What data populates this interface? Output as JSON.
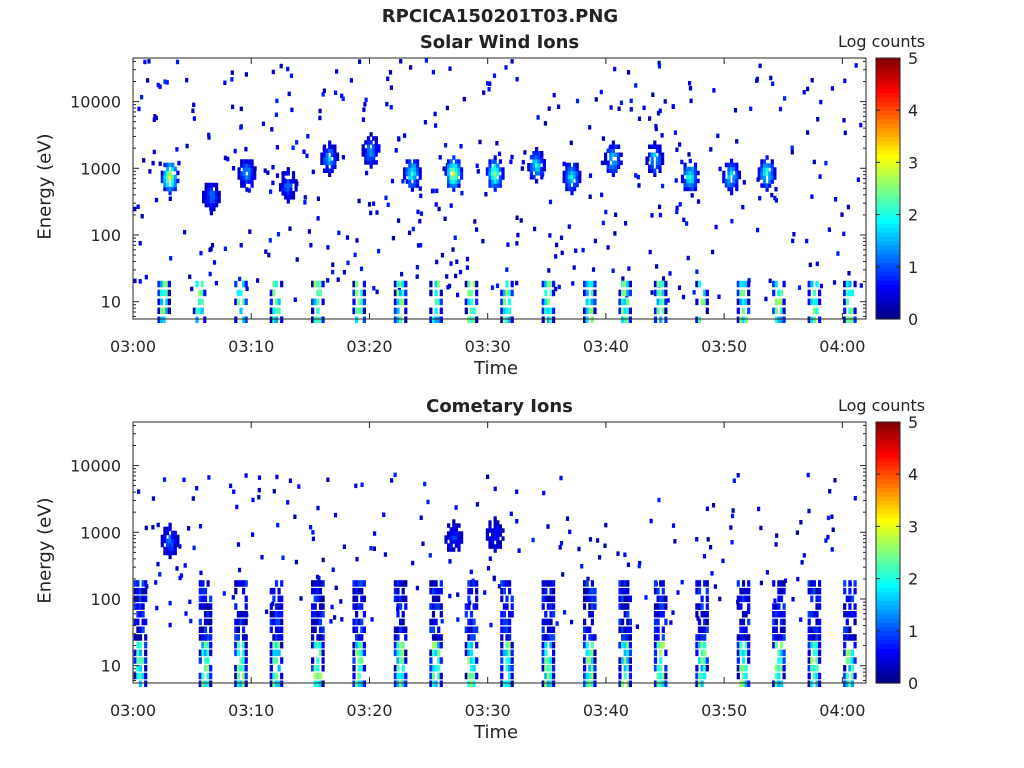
{
  "figure_title": "RPCICA150201T03.PNG",
  "colors": {
    "axis": "#262626",
    "background": "#ffffff",
    "colormap": "jet"
  },
  "chart_data": [
    {
      "type": "heatmap",
      "title": "Solar Wind Ions",
      "xlabel": "Time",
      "ylabel": "Energy (eV)",
      "y_scale": "log",
      "ylim": [
        5.5,
        45000
      ],
      "xlim": [
        "03:00",
        "04:02"
      ],
      "x_ticks": [
        "03:00",
        "03:10",
        "03:20",
        "03:30",
        "03:40",
        "03:50",
        "04:00"
      ],
      "y_ticks": [
        10,
        100,
        1000,
        10000
      ],
      "y_tick_labels": [
        "10",
        "100",
        "1000",
        "10000"
      ],
      "colorbar": {
        "label": "Log counts",
        "range": [
          0,
          5
        ],
        "ticks": [
          "0",
          "1",
          "2",
          "3",
          "4",
          "5"
        ]
      },
      "bursts": [
        {
          "t": 3.0,
          "e": 800,
          "v": 3.0
        },
        {
          "t": 6.5,
          "e": 400,
          "v": 1.2
        },
        {
          "t": 9.5,
          "e": 900,
          "v": 1.5
        },
        {
          "t": 13.0,
          "e": 600,
          "v": 1.2
        },
        {
          "t": 16.5,
          "e": 1500,
          "v": 1.6
        },
        {
          "t": 20.0,
          "e": 2000,
          "v": 1.5
        },
        {
          "t": 23.5,
          "e": 900,
          "v": 2.2
        },
        {
          "t": 27.0,
          "e": 900,
          "v": 3.0
        },
        {
          "t": 30.5,
          "e": 900,
          "v": 2.7
        },
        {
          "t": 34.0,
          "e": 1200,
          "v": 2.0
        },
        {
          "t": 37.0,
          "e": 800,
          "v": 2.0
        },
        {
          "t": 40.5,
          "e": 1500,
          "v": 1.8
        },
        {
          "t": 44.0,
          "e": 1500,
          "v": 1.8
        },
        {
          "t": 47.0,
          "e": 800,
          "v": 2.2
        },
        {
          "t": 50.5,
          "e": 800,
          "v": 2.0
        },
        {
          "t": 53.5,
          "e": 900,
          "v": 2.2
        }
      ],
      "low_energy_columns": [
        2.5,
        5.5,
        9.0,
        12.0,
        15.5,
        19.0,
        22.5,
        25.5,
        28.5,
        31.5,
        35.0,
        38.5,
        41.5,
        44.5,
        48.0,
        51.5,
        54.5,
        57.5,
        60.5
      ],
      "low_energy_range": [
        6,
        28
      ]
    },
    {
      "type": "heatmap",
      "title": "Cometary Ions",
      "xlabel": "Time",
      "ylabel": "Energy (eV)",
      "y_scale": "log",
      "ylim": [
        5.5,
        45000
      ],
      "xlim": [
        "03:00",
        "04:02"
      ],
      "x_ticks": [
        "03:00",
        "03:10",
        "03:20",
        "03:30",
        "03:40",
        "03:50",
        "04:00"
      ],
      "y_ticks": [
        10,
        100,
        1000,
        10000
      ],
      "y_tick_labels": [
        "10",
        "100",
        "1000",
        "10000"
      ],
      "colorbar": {
        "label": "Log counts",
        "range": [
          0,
          5
        ],
        "ticks": [
          "0",
          "1",
          "2",
          "3",
          "4",
          "5"
        ]
      },
      "bursts": [
        {
          "t": 3.0,
          "e": 800,
          "v": 1.2
        },
        {
          "t": 27.0,
          "e": 900,
          "v": 0.9
        },
        {
          "t": 30.5,
          "e": 1000,
          "v": 0.8
        }
      ],
      "low_energy_columns": [
        0.5,
        6.0,
        9.0,
        12.0,
        15.5,
        19.0,
        22.5,
        25.5,
        28.5,
        31.5,
        35.0,
        38.5,
        41.5,
        44.5,
        48.0,
        51.5,
        54.5,
        57.5,
        60.5
      ],
      "low_energy_range": [
        6,
        250
      ]
    }
  ]
}
